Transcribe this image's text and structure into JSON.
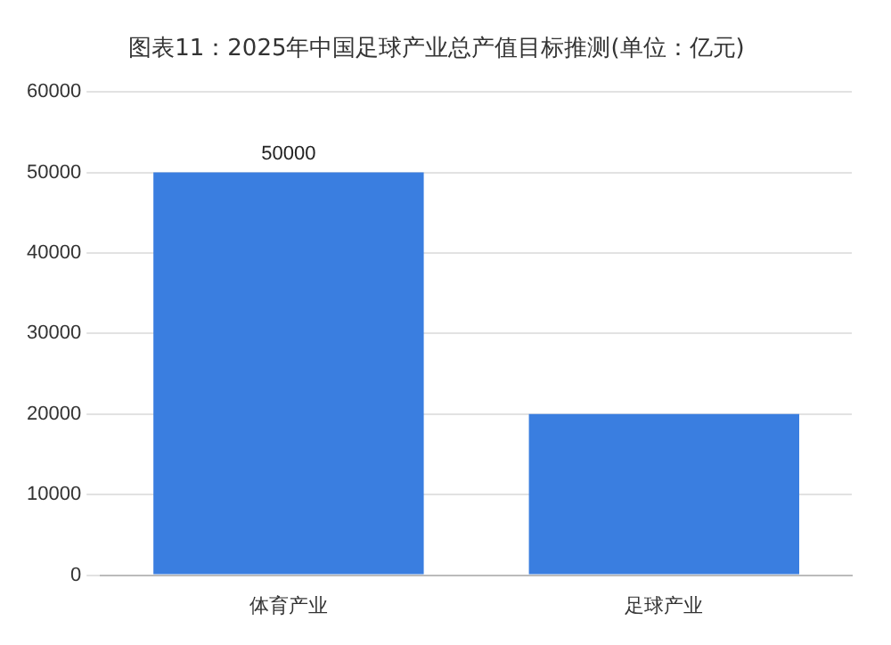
{
  "chart_data": {
    "type": "bar",
    "title": "图表11：2025年中国足球产业总产值目标推测(单位：亿元)",
    "categories": [
      "体育产业",
      "足球产业"
    ],
    "values": [
      50000,
      20000
    ],
    "value_labels": [
      "50000",
      null
    ],
    "color": "#3a7ee0",
    "ylim": [
      0,
      60000
    ],
    "yticks": [
      0,
      10000,
      20000,
      30000,
      40000,
      50000,
      60000
    ],
    "grid": "y",
    "legend": false
  }
}
